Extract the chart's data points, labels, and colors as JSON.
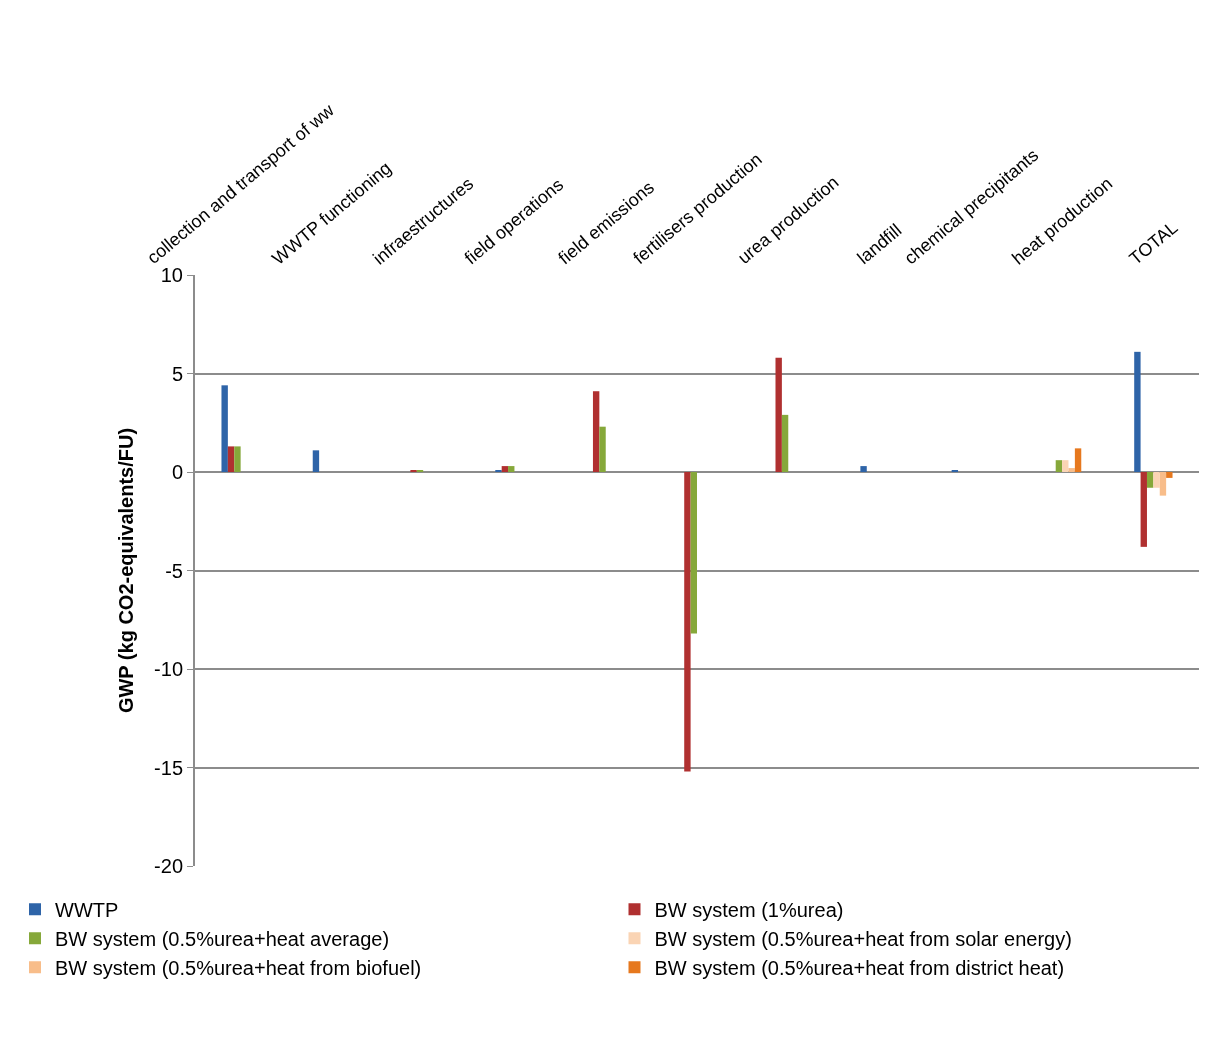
{
  "chart_data": {
    "type": "bar",
    "ylabel": "GWP (kg CO2-equivalents/FU)",
    "categories": [
      "collection and transport of ww",
      "WWTP functioning",
      "infraestructures",
      "field operations",
      "field emissions",
      "fertilisers production",
      "urea production",
      "landfill",
      "chemical precipitants",
      "heat production",
      "TOTAL"
    ],
    "series": [
      {
        "name": "WWTP",
        "color": "#2e64a8",
        "values": [
          4.4,
          1.1,
          null,
          0.1,
          null,
          null,
          null,
          0.3,
          0.1,
          null,
          6.1
        ]
      },
      {
        "name": "BW system (1%urea)",
        "color": "#b03030",
        "values": [
          1.3,
          null,
          0.1,
          0.3,
          4.1,
          -15.2,
          5.8,
          null,
          null,
          null,
          -3.8
        ]
      },
      {
        "name": "BW system (0.5%urea+heat average)",
        "color": "#86a83a",
        "values": [
          1.3,
          null,
          0.1,
          0.3,
          2.3,
          -8.2,
          2.9,
          null,
          null,
          0.6,
          -0.8
        ]
      },
      {
        "name": "BW system (0.5%urea+heat from solar energy)",
        "color": "#fad4b4",
        "values": [
          null,
          null,
          null,
          null,
          null,
          null,
          null,
          null,
          null,
          0.6,
          -0.8
        ]
      },
      {
        "name": "BW system (0.5%urea+heat from biofuel)",
        "color": "#f8bd8a",
        "values": [
          null,
          null,
          null,
          null,
          null,
          null,
          null,
          null,
          null,
          0.2,
          -1.2
        ]
      },
      {
        "name": "BW system (0.5%urea+heat from district heat)",
        "color": "#e6781e",
        "values": [
          null,
          null,
          null,
          null,
          null,
          null,
          null,
          null,
          null,
          1.2,
          -0.3
        ]
      }
    ],
    "ylim": [
      -20,
      10
    ],
    "yticks": [
      -20,
      -15,
      -10,
      -5,
      0,
      5,
      10
    ],
    "grid": "y",
    "legend": "bottom"
  }
}
